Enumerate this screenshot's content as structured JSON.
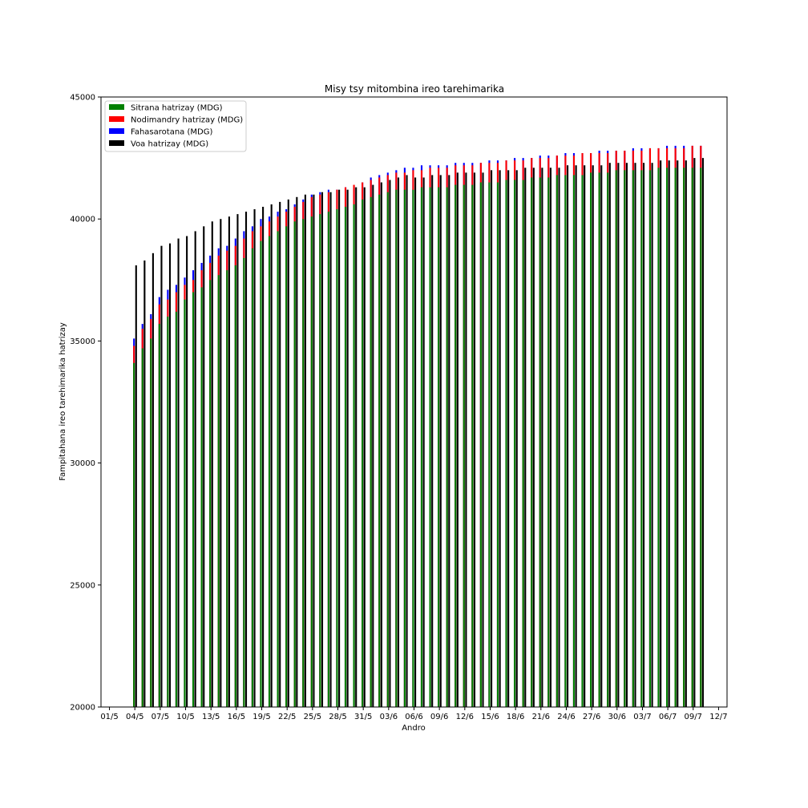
{
  "chart_data": {
    "type": "bar",
    "stacked_partial": true,
    "title": "Misy tsy mitombina ireo tarehimarika",
    "xlabel": "Andro",
    "ylabel": "Fampitahana ireo tarehimarika hatrizay",
    "ylim": [
      20000,
      45000
    ],
    "yticks": [
      20000,
      25000,
      30000,
      35000,
      40000,
      45000
    ],
    "xlim": [
      "2020-04-30",
      "2020-07-13"
    ],
    "xticks": [
      "01/5",
      "04/5",
      "07/5",
      "10/5",
      "13/5",
      "16/5",
      "19/5",
      "22/5",
      "25/5",
      "28/5",
      "31/5",
      "03/6",
      "06/6",
      "09/6",
      "12/6",
      "15/6",
      "18/6",
      "21/6",
      "24/6",
      "27/6",
      "30/6",
      "03/7",
      "06/7",
      "09/7",
      "12/7"
    ],
    "xtick_dates": [
      "2020-05-01",
      "2020-05-04",
      "2020-05-07",
      "2020-05-10",
      "2020-05-13",
      "2020-05-16",
      "2020-05-19",
      "2020-05-22",
      "2020-05-25",
      "2020-05-28",
      "2020-05-31",
      "2020-06-03",
      "2020-06-06",
      "2020-06-09",
      "2020-06-12",
      "2020-06-15",
      "2020-06-18",
      "2020-06-21",
      "2020-06-24",
      "2020-06-27",
      "2020-06-30",
      "2020-07-03",
      "2020-07-06",
      "2020-07-09",
      "2020-07-12"
    ],
    "legend_position": "top-left",
    "grid": false,
    "first_date": "2020-05-04",
    "series": [
      {
        "name": "Sitrana hatrizay (MDG)",
        "color": "#008000",
        "values": [
          34100,
          34700,
          35100,
          35700,
          36000,
          36200,
          36700,
          37000,
          37200,
          37500,
          37700,
          37900,
          38100,
          38400,
          38800,
          39100,
          39300,
          39500,
          39700,
          39900,
          40000,
          40100,
          40200,
          40300,
          40400,
          40500,
          40600,
          40800,
          40900,
          41000,
          41100,
          41200,
          41200,
          41200,
          41300,
          41300,
          41300,
          41300,
          41400,
          41400,
          41400,
          41500,
          41500,
          41500,
          41600,
          41600,
          41600,
          41700,
          41700,
          41700,
          41800,
          41800,
          41800,
          41800,
          41900,
          41900,
          41900,
          42000,
          42000,
          42000,
          42000,
          42000,
          42100,
          42100,
          42100,
          42100,
          42100,
          42100
        ]
      },
      {
        "name": "Nodimandry hatrizay (MDG)",
        "color": "#ff0000",
        "values": [
          34800,
          35500,
          35900,
          36500,
          36700,
          37000,
          37300,
          37500,
          37900,
          38200,
          38500,
          38700,
          38900,
          39200,
          39500,
          39700,
          39900,
          40100,
          40300,
          40500,
          40700,
          40900,
          41000,
          41100,
          41200,
          41300,
          41400,
          41500,
          41600,
          41700,
          41800,
          41900,
          41900,
          42000,
          42000,
          42100,
          42100,
          42100,
          42200,
          42200,
          42200,
          42300,
          42300,
          42300,
          42400,
          42400,
          42400,
          42500,
          42500,
          42500,
          42600,
          42600,
          42600,
          42700,
          42700,
          42700,
          42700,
          42800,
          42800,
          42800,
          42800,
          42900,
          42900,
          42900,
          42900,
          42900,
          43000,
          43000
        ]
      },
      {
        "name": "Fahasarotana (MDG)",
        "color": "#0000ff",
        "values": [
          35100,
          35700,
          36100,
          36800,
          37100,
          37300,
          37600,
          37900,
          38200,
          38500,
          38800,
          38900,
          39200,
          39500,
          39700,
          40000,
          40100,
          40300,
          40400,
          40600,
          40800,
          41000,
          41100,
          41200,
          41200,
          41300,
          41300,
          41500,
          41700,
          41800,
          41900,
          42000,
          42100,
          42100,
          42200,
          42200,
          42200,
          42200,
          42300,
          42300,
          42300,
          42300,
          42400,
          42400,
          42400,
          42500,
          42500,
          42500,
          42600,
          42600,
          42600,
          42700,
          42700,
          42700,
          42700,
          42800,
          42800,
          42800,
          42800,
          42900,
          42900,
          42900,
          42900,
          43000,
          43000,
          43000,
          43000,
          43000
        ]
      },
      {
        "name": "Voa hatrizay (MDG)",
        "color": "#000000",
        "values": [
          38100,
          38300,
          38600,
          38900,
          39000,
          39200,
          39300,
          39500,
          39700,
          39900,
          40000,
          40100,
          40200,
          40300,
          40400,
          40500,
          40600,
          40700,
          40800,
          40900,
          41000,
          41000,
          41100,
          41100,
          41200,
          41200,
          41300,
          41300,
          41400,
          41500,
          41600,
          41700,
          41800,
          41700,
          41700,
          41800,
          41800,
          41800,
          41900,
          41900,
          41900,
          41900,
          42000,
          42000,
          42000,
          42000,
          42100,
          42100,
          42100,
          42100,
          42100,
          42200,
          42200,
          42200,
          42200,
          42200,
          42300,
          42300,
          42300,
          42300,
          42300,
          42300,
          42400,
          42400,
          42400,
          42400,
          42500,
          42500
        ]
      }
    ]
  }
}
